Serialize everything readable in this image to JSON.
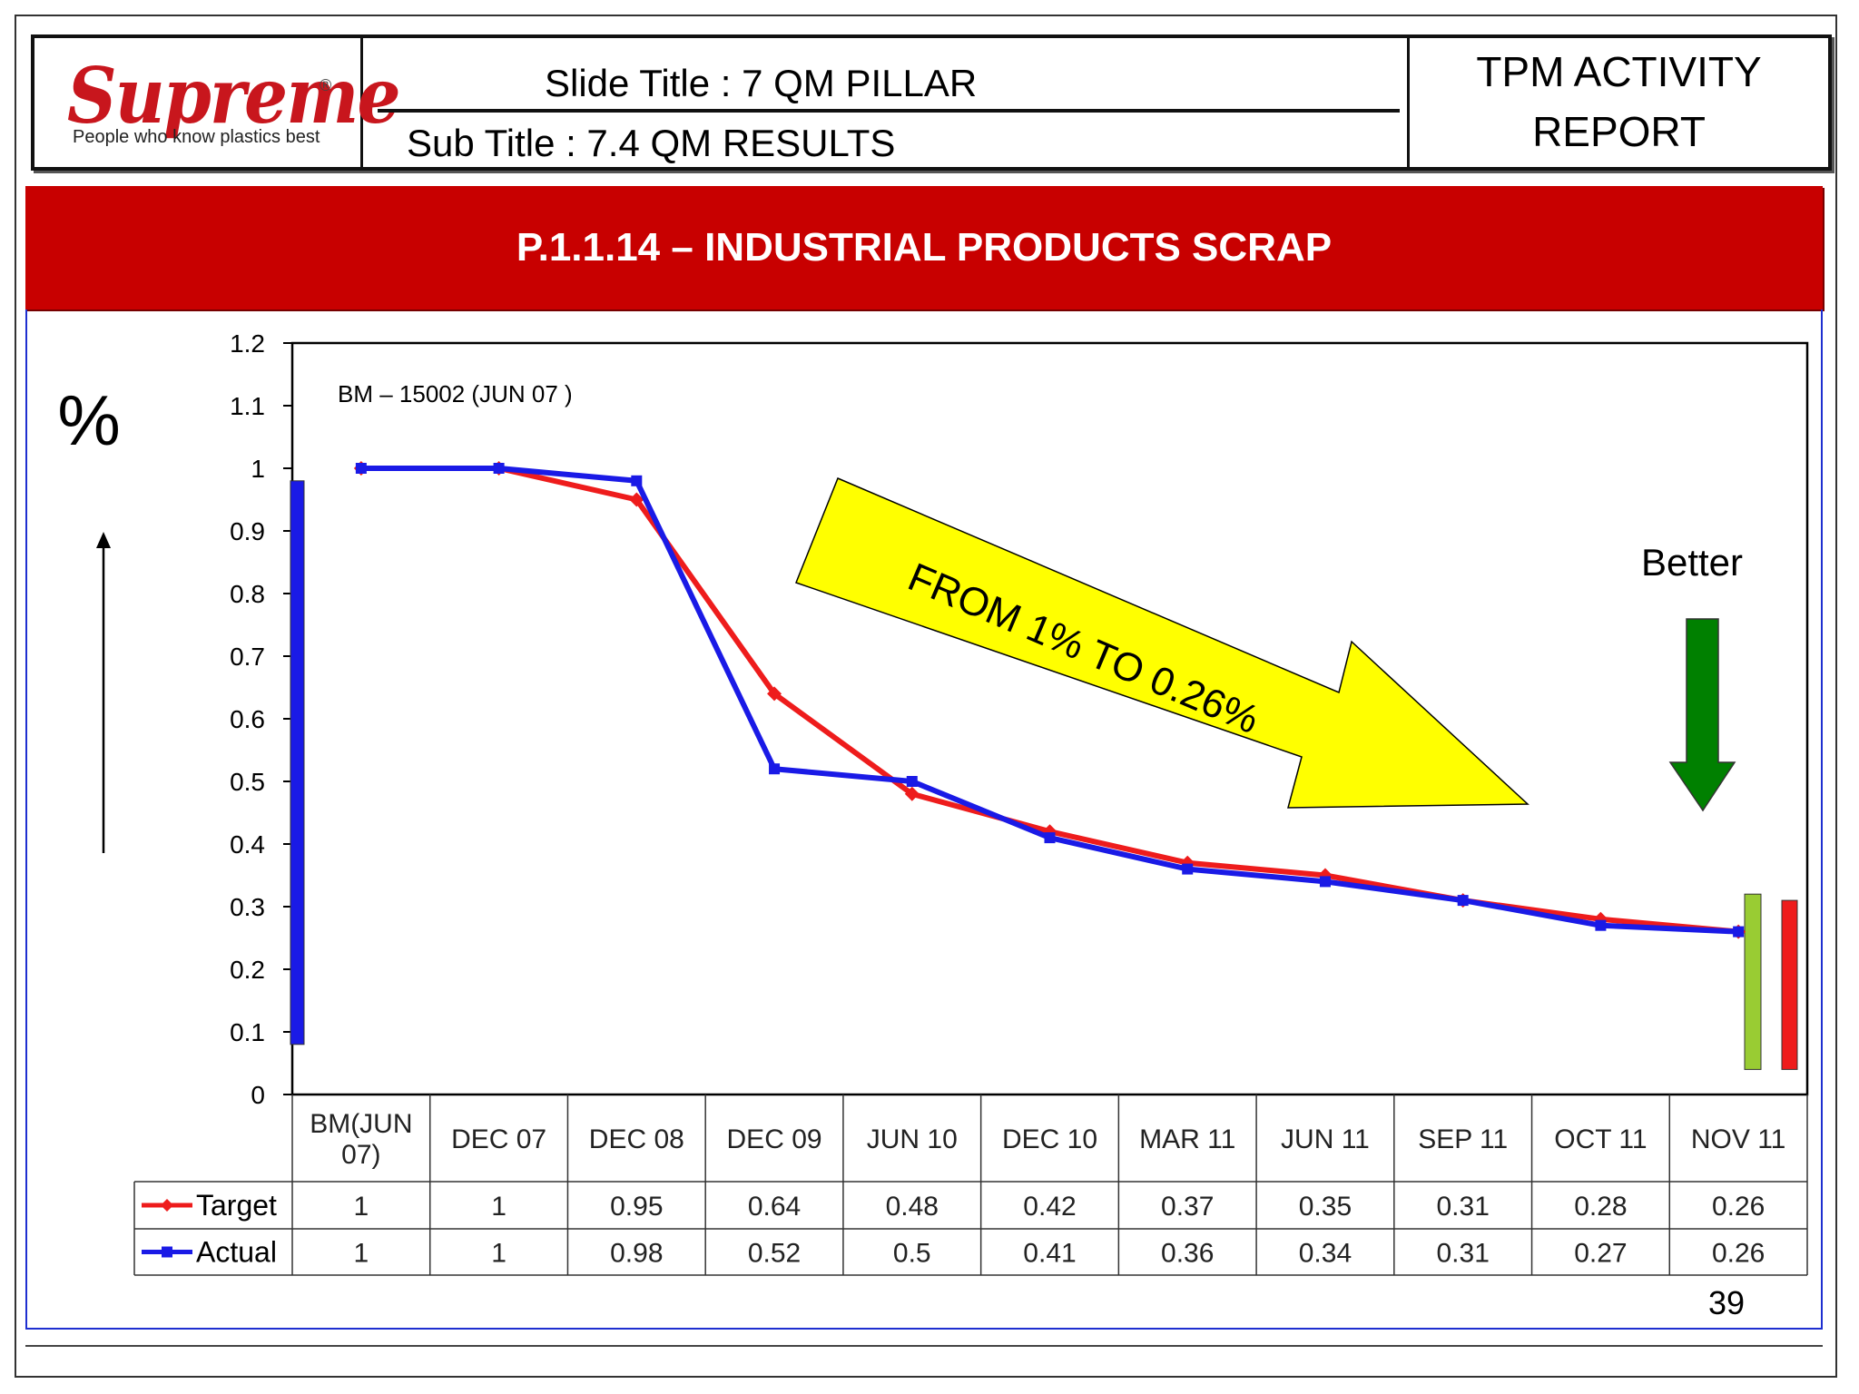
{
  "header": {
    "logo": {
      "brand": "Supreme",
      "tagline": "People  who know plastics best",
      "registered": "®"
    },
    "slide_title": "Slide Title :   7  QM PILLAR",
    "sub_title": "Sub Title     :  7.4  QM RESULTS",
    "report_label_line1": "TPM ACTIVITY",
    "report_label_line2": "REPORT"
  },
  "banner": {
    "title": "P.1.1.14 – INDUSTRIAL PRODUCTS SCRAP"
  },
  "page_number": "39",
  "colors": {
    "banner_red": "#c80000",
    "target_red": "#ee1c1c",
    "actual_blue": "#1a1ae6",
    "arrow_yellow": "#ffff00",
    "better_green": "#008000",
    "bar_lightgreen": "#99cc33",
    "bar_red": "#ee1c1c"
  },
  "chart_data": {
    "type": "line",
    "categories": [
      "BM(JUN 07)",
      "DEC 07",
      "DEC 08",
      "DEC 09",
      "JUN 10",
      "DEC 10",
      "MAR 11",
      "JUN 11",
      "SEP 11",
      "OCT 11",
      "NOV 11"
    ],
    "category_lines": [
      [
        "BM(JUN",
        "07)"
      ],
      [
        "DEC 07"
      ],
      [
        "DEC 08"
      ],
      [
        "DEC 09"
      ],
      [
        "JUN 10"
      ],
      [
        "DEC 10"
      ],
      [
        "MAR 11"
      ],
      [
        "JUN 11"
      ],
      [
        "SEP 11"
      ],
      [
        "OCT 11"
      ],
      [
        "NOV 11"
      ]
    ],
    "series": [
      {
        "name": "Target",
        "color": "#ee1c1c",
        "marker": "diamond",
        "values": [
          1,
          1,
          0.95,
          0.64,
          0.48,
          0.42,
          0.37,
          0.35,
          0.31,
          0.28,
          0.26
        ]
      },
      {
        "name": "Actual",
        "color": "#1a1ae6",
        "marker": "square",
        "values": [
          1,
          1,
          0.98,
          0.52,
          0.5,
          0.41,
          0.36,
          0.34,
          0.31,
          0.27,
          0.26
        ]
      }
    ],
    "table_values": {
      "Target": [
        "1",
        "1",
        "0.95",
        "0.64",
        "0.48",
        "0.42",
        "0.37",
        "0.35",
        "0.31",
        "0.28",
        "0.26"
      ],
      "Actual": [
        "1",
        "1",
        "0.98",
        "0.52",
        "0.5",
        "0.41",
        "0.36",
        "0.34",
        "0.31",
        "0.27",
        "0.26"
      ]
    },
    "ylim": [
      0,
      1.2
    ],
    "yticks": [
      "0",
      "0.1",
      "0.2",
      "0.3",
      "0.4",
      "0.5",
      "0.6",
      "0.7",
      "0.8",
      "0.9",
      "1",
      "1.1",
      "1.2"
    ],
    "ylabel": "%",
    "xlabel": "",
    "grid": false,
    "legend": "data-table-left",
    "annotations": {
      "bm_note": "BM –  15002 (JUN 07 )",
      "trend_arrow_text": "FROM 1% TO 0.26%",
      "better_label": "Better",
      "better_direction": "down",
      "blue_bar_range": [
        0.08,
        0.98
      ],
      "green_bar_range": [
        0.04,
        0.32
      ],
      "red_bar_range": [
        0.04,
        0.31
      ]
    }
  }
}
